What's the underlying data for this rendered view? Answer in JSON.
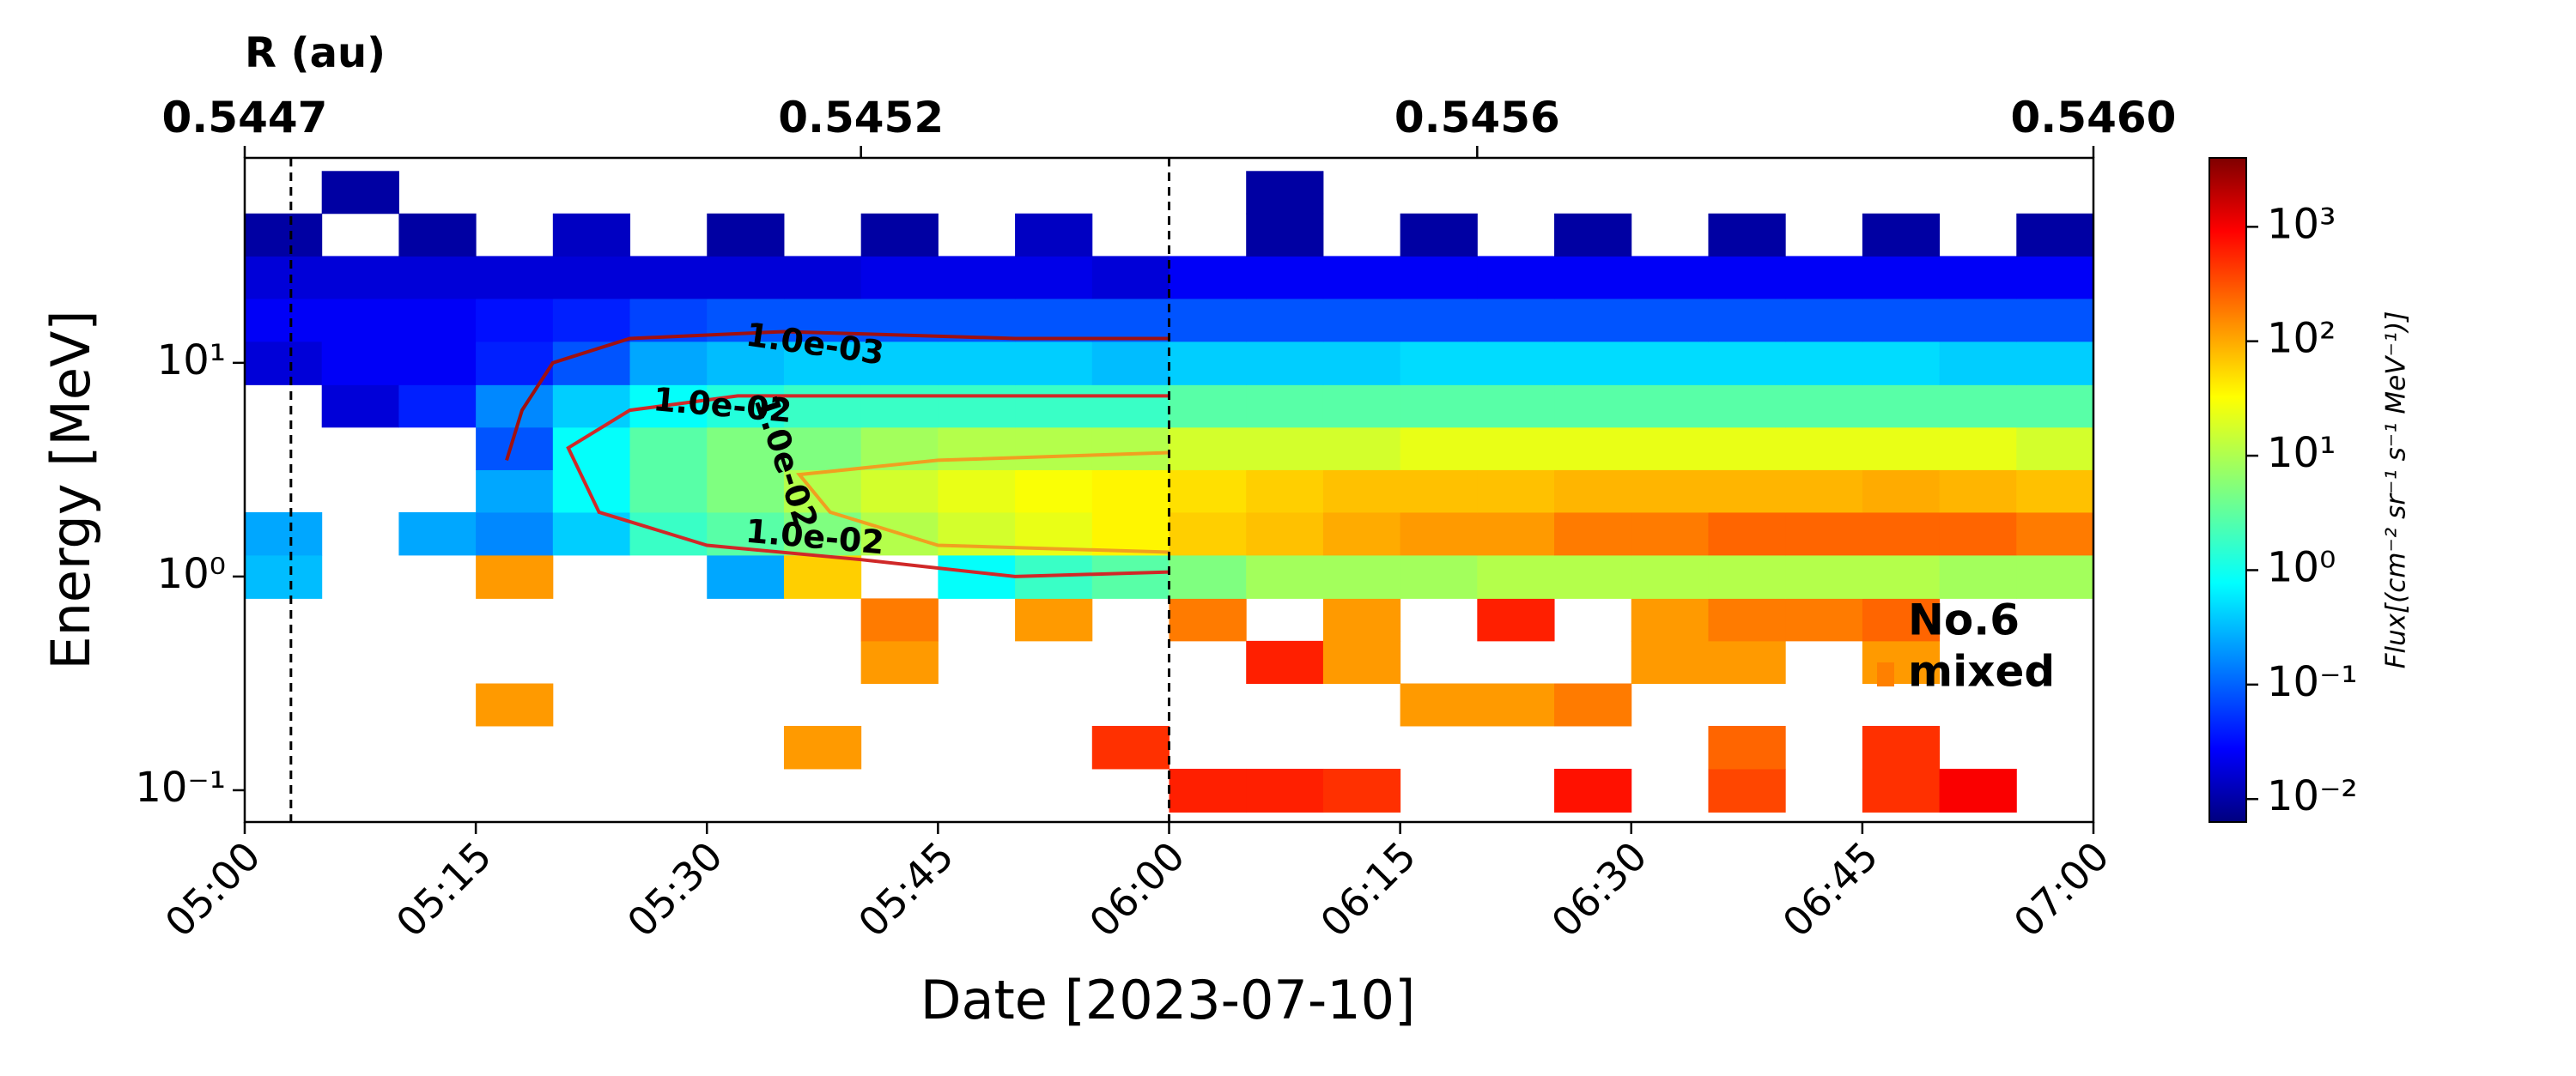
{
  "chart_data": {
    "type": "heatmap",
    "xlabel": "Date [2023-07-10]",
    "ylabel": "Energy [MeV]",
    "x2label": "R (au)",
    "colorbar_label": "Flux[(cm⁻² sr⁻¹ s⁻¹ MeV⁻¹)]",
    "log_y": true,
    "log_color": true,
    "colormap": "jet",
    "xlim": [
      "05:00",
      "07:00"
    ],
    "xticks": [
      "05:00",
      "05:15",
      "05:30",
      "05:45",
      "06:00",
      "06:15",
      "06:30",
      "06:45",
      "07:00"
    ],
    "x2ticks": [
      {
        "value": "05:00",
        "label": "0.5447"
      },
      {
        "value": "05:40",
        "label": "0.5452"
      },
      {
        "value": "06:20",
        "label": "0.5456"
      },
      {
        "value": "07:00",
        "label": "0.5460"
      }
    ],
    "ylim": [
      0.071,
      91
    ],
    "yticks": [
      {
        "value": 0.1,
        "label": "10⁻¹"
      },
      {
        "value": 1,
        "label": "10⁰"
      },
      {
        "value": 10,
        "label": "10¹"
      }
    ],
    "clim": [
      0.0063,
      4000
    ],
    "cticks": [
      {
        "value": 0.01,
        "label": "10⁻²"
      },
      {
        "value": 0.1,
        "label": "10⁻¹"
      },
      {
        "value": 1,
        "label": "10⁰"
      },
      {
        "value": 10,
        "label": "10¹"
      },
      {
        "value": 100,
        "label": "10²"
      },
      {
        "value": 1000,
        "label": "10³"
      }
    ],
    "vlines": [
      "05:03",
      "06:00"
    ],
    "x_bins": [
      "05:00",
      "05:05",
      "05:10",
      "05:15",
      "05:20",
      "05:25",
      "05:30",
      "05:35",
      "05:40",
      "05:45",
      "05:50",
      "05:55",
      "06:00",
      "06:05",
      "06:10",
      "06:15",
      "06:20",
      "06:25",
      "06:30",
      "06:35",
      "06:40",
      "06:45",
      "06:50",
      "06:55",
      "07:00"
    ],
    "y_bins": [
      0.079,
      0.126,
      0.2,
      0.316,
      0.5,
      0.79,
      1.26,
      2,
      3.16,
      5,
      7.9,
      12.6,
      20,
      31.6,
      50,
      79
    ],
    "z": [
      [
        null,
        null,
        null,
        null,
        null,
        null,
        null,
        null,
        null,
        null,
        null,
        null,
        500,
        500,
        400,
        null,
        null,
        600,
        null,
        300,
        null,
        400,
        800,
        null
      ],
      [
        null,
        null,
        null,
        null,
        null,
        null,
        null,
        100,
        null,
        null,
        null,
        400,
        null,
        null,
        null,
        null,
        null,
        null,
        null,
        200,
        null,
        400,
        null,
        null
      ],
      [
        null,
        null,
        null,
        100,
        null,
        null,
        null,
        null,
        null,
        null,
        null,
        null,
        null,
        null,
        null,
        100,
        100,
        150,
        null,
        null,
        null,
        null,
        null,
        null
      ],
      [
        null,
        null,
        null,
        null,
        null,
        null,
        null,
        null,
        100,
        null,
        null,
        null,
        null,
        500,
        100,
        null,
        null,
        null,
        100,
        100,
        null,
        100,
        null,
        null
      ],
      [
        null,
        null,
        null,
        null,
        null,
        null,
        null,
        null,
        150,
        null,
        100,
        null,
        150,
        null,
        100,
        null,
        500,
        null,
        100,
        150,
        150,
        200,
        null,
        null
      ],
      [
        0.4,
        null,
        null,
        100,
        null,
        null,
        0.3,
        50,
        null,
        1,
        2,
        3,
        5,
        8,
        8,
        8,
        10,
        10,
        10,
        10,
        10,
        10,
        8,
        8
      ],
      [
        0.3,
        null,
        0.3,
        0.2,
        0.5,
        2,
        3,
        5,
        10,
        15,
        20,
        30,
        50,
        60,
        80,
        100,
        100,
        150,
        150,
        200,
        200,
        200,
        200,
        150
      ],
      [
        null,
        null,
        null,
        0.3,
        1,
        3,
        5,
        10,
        15,
        20,
        25,
        30,
        40,
        50,
        60,
        60,
        60,
        70,
        70,
        70,
        70,
        80,
        70,
        60
      ],
      [
        null,
        null,
        null,
        0.1,
        1,
        3,
        5,
        5,
        8,
        10,
        10,
        10,
        15,
        15,
        15,
        20,
        20,
        20,
        20,
        20,
        20,
        20,
        20,
        15
      ],
      [
        null,
        0.02,
        0.05,
        0.2,
        0.5,
        1,
        1.5,
        2,
        2,
        2,
        2,
        2,
        3,
        3,
        3,
        3,
        3,
        3,
        3,
        3,
        3,
        3,
        3,
        3
      ],
      [
        0.02,
        0.03,
        0.03,
        0.05,
        0.1,
        0.3,
        0.4,
        0.5,
        0.5,
        0.5,
        0.5,
        0.4,
        0.5,
        0.5,
        0.5,
        0.6,
        0.6,
        0.6,
        0.6,
        0.6,
        0.6,
        0.6,
        0.5,
        0.5
      ],
      [
        0.03,
        0.03,
        0.03,
        0.04,
        0.05,
        0.08,
        0.1,
        0.1,
        0.1,
        0.1,
        0.1,
        0.1,
        0.1,
        0.1,
        0.1,
        0.1,
        0.1,
        0.1,
        0.1,
        0.1,
        0.1,
        0.1,
        0.1,
        0.1
      ],
      [
        0.02,
        0.02,
        0.02,
        0.02,
        0.02,
        0.02,
        0.02,
        0.02,
        0.025,
        0.025,
        0.025,
        0.02,
        0.03,
        0.03,
        0.03,
        0.03,
        0.03,
        0.03,
        0.03,
        0.03,
        0.03,
        0.03,
        0.03,
        0.03
      ],
      [
        0.01,
        null,
        0.01,
        null,
        0.015,
        null,
        0.01,
        null,
        0.01,
        null,
        0.015,
        null,
        null,
        0.01,
        null,
        0.01,
        null,
        0.01,
        null,
        0.01,
        null,
        0.01,
        null,
        0.01
      ],
      [
        null,
        0.01,
        null,
        null,
        null,
        null,
        null,
        null,
        null,
        null,
        null,
        null,
        null,
        0.01,
        null,
        null,
        null,
        null,
        null,
        null,
        null,
        null,
        null,
        null
      ]
    ],
    "contours": [
      {
        "color": "#a01010",
        "x": [
          "05:17",
          "05:18",
          "05:20",
          "05:25",
          "05:35",
          "05:50",
          "06:00"
        ],
        "y": [
          3.5,
          6,
          10,
          13,
          14,
          13,
          13
        ]
      },
      {
        "color": "#d02828",
        "x": [
          "06:00",
          "05:50",
          "05:40",
          "05:30",
          "05:23",
          "05:21",
          "05:25",
          "05:32",
          "05:45",
          "06:00"
        ],
        "y": [
          1.05,
          1.0,
          1.2,
          1.4,
          2,
          4,
          6,
          7,
          7,
          7
        ]
      },
      {
        "color": "#f0a020",
        "x": [
          "06:00",
          "05:45",
          "05:38",
          "05:36",
          "05:45",
          "06:00"
        ],
        "y": [
          1.3,
          1.4,
          2,
          3,
          3.5,
          3.8
        ]
      }
    ],
    "contour_labels": [
      {
        "text": "1.0e-03",
        "x": "05:37",
        "y": 12
      },
      {
        "text": "1.0e-02",
        "x": "05:31",
        "y": 6.2
      },
      {
        "text": "1.0e-02",
        "x": "05:35",
        "y": 3.4
      },
      {
        "text": "1.0e-02",
        "x": "05:37",
        "y": 1.5
      }
    ],
    "annotation": {
      "lines": [
        "No.6",
        "mixed"
      ],
      "color": "#ff8000"
    }
  }
}
